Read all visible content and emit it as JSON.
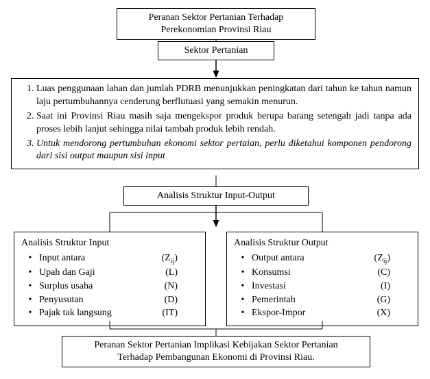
{
  "colors": {
    "background": "#ffffff",
    "border": "#000000",
    "text": "#000000"
  },
  "font": {
    "family": "Times New Roman",
    "base_size_pt": 11
  },
  "flow": {
    "type": "flowchart",
    "title": {
      "line1": "Peranan Sektor Pertanian Terhadap",
      "line2": "Perekonomian Provinsi Riau"
    },
    "sector": "Sektor  Pertanian",
    "context_items": [
      "Luas penggunaan lahan dan jumlah PDRB menunjukkan peningkatan dari tahun ke tahun namun laju pertumbuhannya cenderung berflutuasi yang semakin menurun.",
      "Saat ini Provinsi Riau masih saja mengekspor produk berupa barang setengah jadi tanpa ada proses lebih lanjut sehingga nilai tambah produk lebih rendah.",
      "Untuk mendorong pertumbuhan ekonomi sektor pertaian, perlu diketahui komponen pendorong dari sisi output maupun sisi input"
    ],
    "analysis": "Analisis Struktur Input-Output",
    "input": {
      "heading": "Analisis Struktur Input",
      "items": [
        {
          "label": "Input antara",
          "symbol_prefix": "(Z",
          "symbol_sub": "ij",
          "symbol_suffix": ")"
        },
        {
          "label": "Upah dan Gaji",
          "symbol_prefix": "(L)",
          "symbol_sub": "",
          "symbol_suffix": ""
        },
        {
          "label": "Surplus usaha",
          "symbol_prefix": "(N)",
          "symbol_sub": "",
          "symbol_suffix": ""
        },
        {
          "label": "Penyusutan",
          "symbol_prefix": "(D)",
          "symbol_sub": "",
          "symbol_suffix": ""
        },
        {
          "label": "Pajak tak langsung",
          "symbol_prefix": "(IT)",
          "symbol_sub": "",
          "symbol_suffix": ""
        }
      ]
    },
    "output": {
      "heading": "Analisis Struktur Output",
      "items": [
        {
          "label": "Output antara",
          "symbol_prefix": "(Z",
          "symbol_sub": "ij",
          "symbol_suffix": ")"
        },
        {
          "label": "Konsumsi",
          "symbol_prefix": "(C)",
          "symbol_sub": "",
          "symbol_suffix": ""
        },
        {
          "label": "Investasi",
          "symbol_prefix": "(I)",
          "symbol_sub": "",
          "symbol_suffix": ""
        },
        {
          "label": "Pemerintah",
          "symbol_prefix": "(G)",
          "symbol_sub": "",
          "symbol_suffix": ""
        },
        {
          "label": "Ekspor-Impor",
          "symbol_prefix": "(X)",
          "symbol_sub": "",
          "symbol_suffix": ""
        }
      ]
    },
    "final": {
      "line1": "Peranan Sektor Pertanian Implikasi Kebijakan Sektor Pertanian",
      "line2": "Terhadap Pembangunan Ekonomi di Provinsi Riau."
    }
  }
}
